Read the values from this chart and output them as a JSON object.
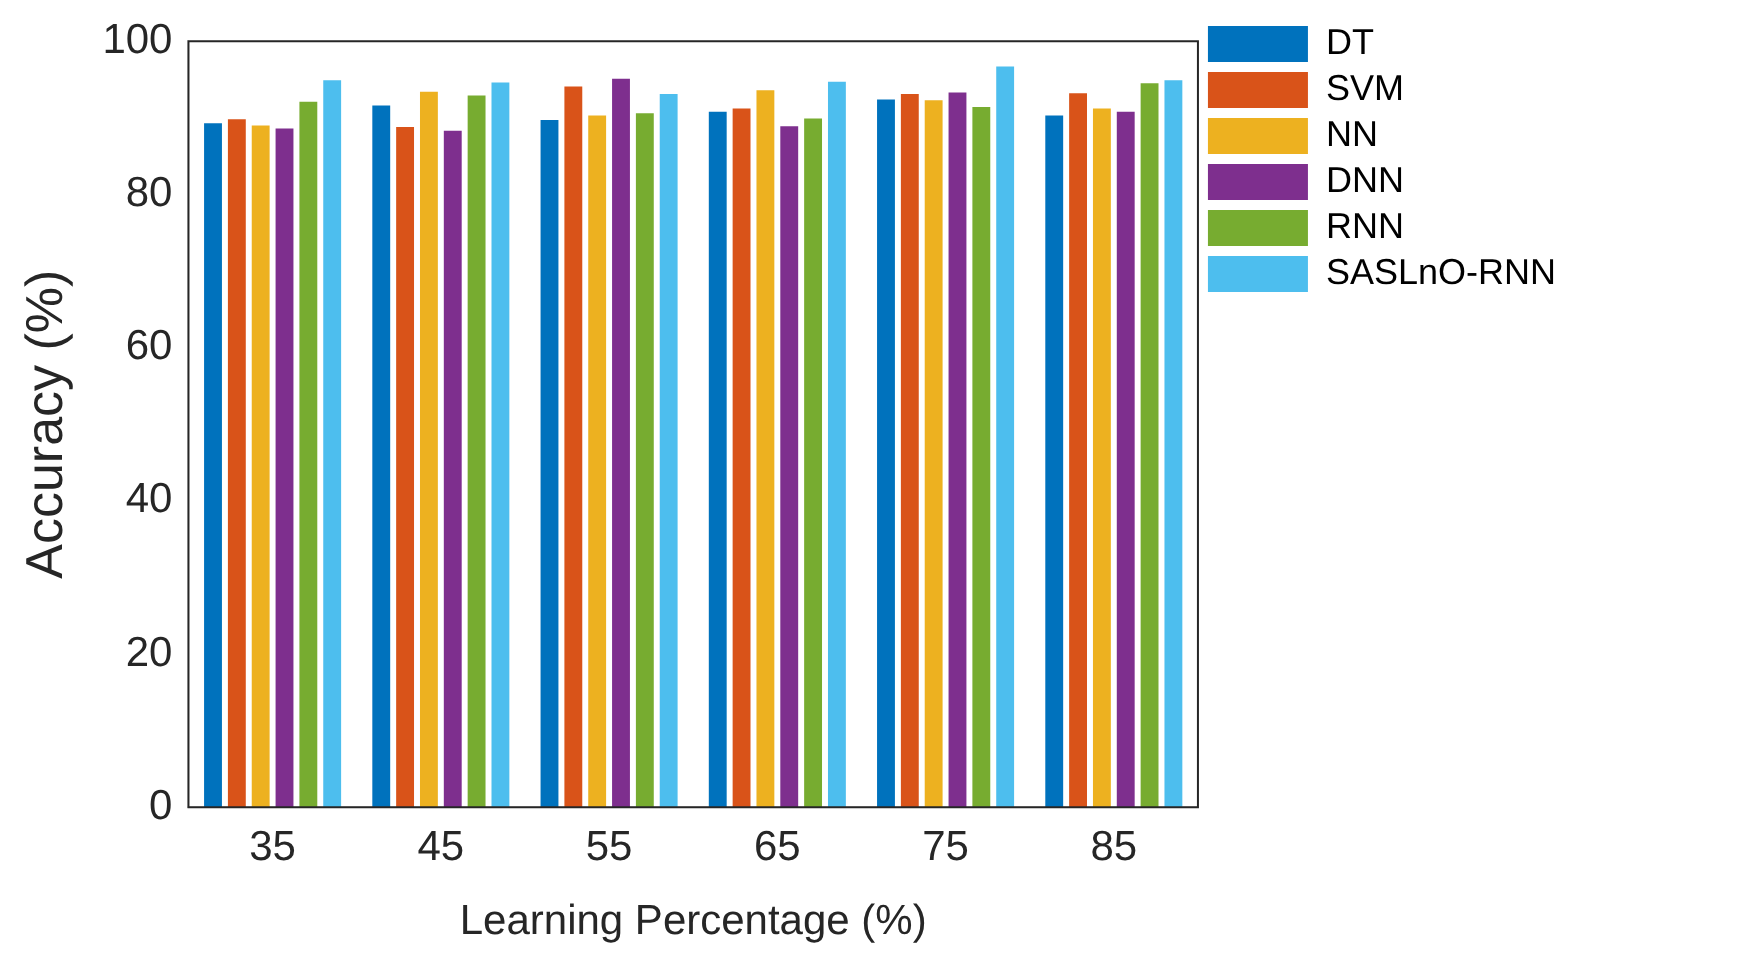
{
  "chart_data": {
    "type": "bar",
    "xlabel": "Learning Percentage (%)",
    "ylabel": "Accuracy (%)",
    "categories": [
      "35",
      "45",
      "55",
      "65",
      "75",
      "85"
    ],
    "series": [
      {
        "name": "DT",
        "color": "#0072bd",
        "values": [
          89.3,
          91.6,
          89.7,
          90.8,
          92.4,
          90.3
        ]
      },
      {
        "name": "SVM",
        "color": "#d95319",
        "values": [
          89.8,
          88.8,
          94.1,
          91.2,
          93.1,
          93.2
        ]
      },
      {
        "name": "NN",
        "color": "#edb120",
        "values": [
          89.0,
          93.4,
          90.3,
          93.6,
          92.3,
          91.2
        ]
      },
      {
        "name": "DNN",
        "color": "#7e2f8e",
        "values": [
          88.6,
          88.3,
          95.1,
          88.9,
          93.3,
          90.8
        ]
      },
      {
        "name": "RNN",
        "color": "#77ac30",
        "values": [
          92.1,
          92.9,
          90.6,
          89.9,
          91.4,
          94.5
        ]
      },
      {
        "name": "SASLnO-RNN",
        "color": "#4dbeee",
        "values": [
          94.9,
          94.6,
          93.1,
          94.7,
          96.7,
          94.9
        ]
      }
    ],
    "ylim": [
      0,
      100
    ],
    "yticks": [
      0,
      20,
      40,
      60,
      80,
      100
    ],
    "grid": false,
    "legend": "top right"
  }
}
